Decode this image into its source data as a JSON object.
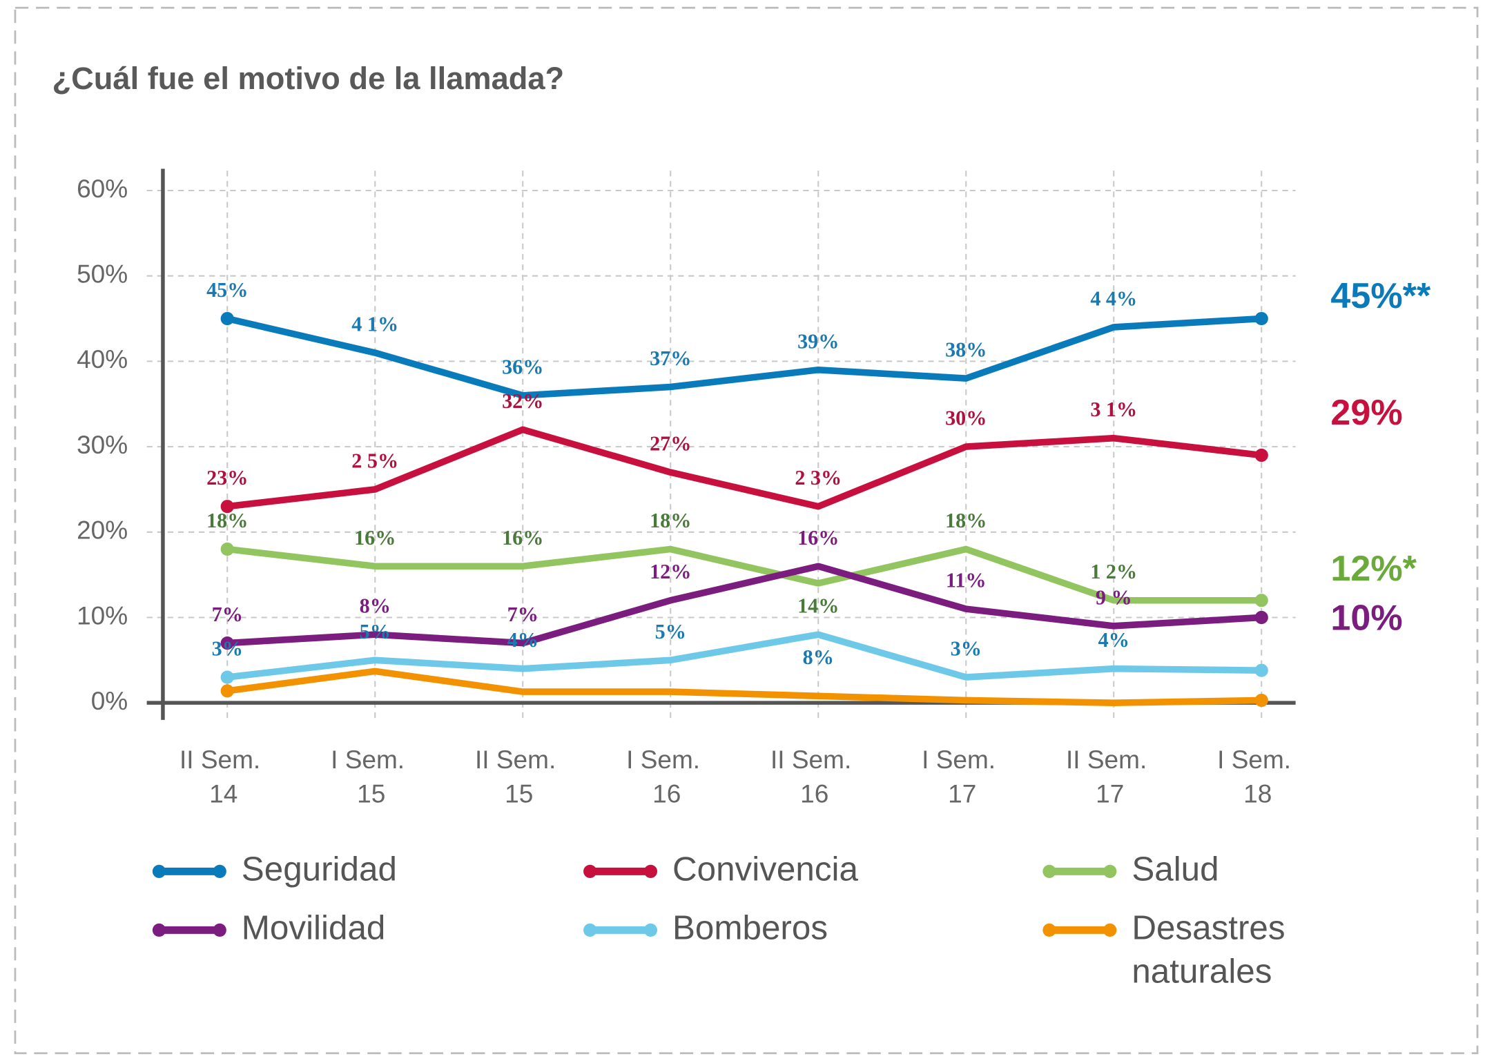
{
  "chart_data": {
    "type": "line",
    "title": "¿Cuál fue el motivo de la llamada?",
    "categories": [
      "II Sem. 14",
      "I Sem. 15",
      "II Sem. 15",
      "I Sem. 16",
      "II Sem. 16",
      "I Sem. 17",
      "II Sem. 17",
      "I Sem. 18"
    ],
    "ylim": [
      0,
      60
    ],
    "yticks": [
      {
        "value": 0,
        "label": "0%"
      },
      {
        "value": 10,
        "label": "10%"
      },
      {
        "value": 20,
        "label": "20%"
      },
      {
        "value": 30,
        "label": "30%"
      },
      {
        "value": 40,
        "label": "40%"
      },
      {
        "value": 50,
        "label": "50%"
      },
      {
        "value": 60,
        "label": "60%"
      }
    ],
    "grid": true,
    "legend": "bottom",
    "series": [
      {
        "name": "Seguridad",
        "color": "#0a7bba",
        "label_color": "#1a7ab0",
        "values": [
          45,
          41,
          36,
          37,
          39,
          38,
          44,
          45
        ],
        "value_labels": [
          "45%",
          "4 1%",
          "36%",
          "37%",
          "39%",
          "38%",
          "4 4%",
          null
        ],
        "end_label": "45%**"
      },
      {
        "name": "Convivencia",
        "color": "#c8103f",
        "label_color": "#b01040",
        "values": [
          23,
          25,
          32,
          27,
          23,
          30,
          31,
          29
        ],
        "value_labels": [
          "23%",
          "2 5%",
          "32%",
          "27%",
          "2 3%",
          "30%",
          "3 1%",
          null
        ],
        "end_label": "29%"
      },
      {
        "name": "Salud",
        "color": "#92c560",
        "label_color": "#4a7a3a",
        "end_color": "#6aaa3a",
        "values": [
          18,
          16,
          16,
          18,
          14,
          18,
          12,
          12
        ],
        "value_labels": [
          "18%",
          "16%",
          "16%",
          "18%",
          "14%",
          "18%",
          "1 2%",
          null
        ],
        "end_label": "12%*"
      },
      {
        "name": "Movilidad",
        "color": "#7b1d7e",
        "label_color": "#7b1d7e",
        "values": [
          7,
          8,
          7,
          12,
          16,
          11,
          9,
          10
        ],
        "value_labels": [
          "7%",
          "8%",
          "7%",
          "12%",
          "16%",
          "11%",
          "9 %",
          null
        ],
        "end_label": "10%"
      },
      {
        "name": "Bomberos",
        "color": "#6ec8e8",
        "label_color": "#1a7ab0",
        "values": [
          3,
          5,
          4,
          5,
          8,
          3,
          4,
          3.8
        ],
        "value_labels": [
          "3%",
          "5%",
          "4%",
          "5%",
          "8%",
          "3%",
          "4%",
          null
        ]
      },
      {
        "name": "Desastres naturales",
        "color": "#f39200",
        "values": [
          1.4,
          3.7,
          1.3,
          1.3,
          0.8,
          0.3,
          0,
          0.3
        ]
      }
    ]
  }
}
